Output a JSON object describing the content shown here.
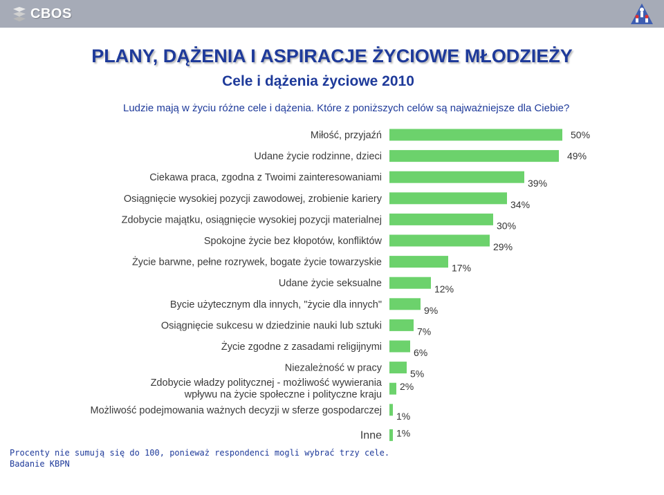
{
  "header": {
    "logo_text": "CBOS",
    "logo_icon": "cbos-logo-icon",
    "emblem_icon": "people-emblem-icon",
    "bar_color": "#a6abb7"
  },
  "title": "PLANY, DĄŻENIA I ASPIRACJE ŻYCIOWE MŁODZIEŻY",
  "subtitle": "Cele i dążenia życiowe 2010",
  "question": "Ludzie mają w życiu różne cele i dążenia. Które z poniższych celów są najważniejsze dla Ciebie?",
  "chart_data": {
    "type": "bar",
    "orientation": "horizontal",
    "bar_color": "#6cd26c",
    "value_suffix": "%",
    "grid": false,
    "categories": [
      "Miłość, przyjaźń",
      "Udane życie rodzinne, dzieci",
      "Ciekawa praca, zgodna z Twoimi zainteresowaniami",
      "Osiągnięcie wysokiej pozycji zawodowej, zrobienie kariery",
      "Zdobycie majątku, osiągnięcie wysokiej pozycji materialnej",
      "Spokojne życie bez kłopotów, konfliktów",
      "Życie barwne, pełne rozrywek, bogate życie towarzyskie",
      "Udane życie seksualne",
      "Bycie użytecznym dla innych, \"życie dla innych\"",
      "Osiągnięcie sukcesu w dziedzinie nauki lub sztuki",
      "Życie zgodne z zasadami religijnymi",
      "Niezależność w pracy",
      "Zdobycie władzy politycznej - możliwość wywierania\nwpływu na życie społeczne i polityczne kraju",
      "Możliwość podejmowania ważnych decyzji w sferze gospodarczej",
      "Inne"
    ],
    "values": [
      50,
      49,
      39,
      34,
      30,
      29,
      17,
      12,
      9,
      7,
      6,
      5,
      2,
      1,
      1
    ],
    "value_labels": [
      "50%",
      "49%",
      "39%",
      "34%",
      "30%",
      "29%",
      "17%",
      "12%",
      "9%",
      "7%",
      "6%",
      "5%",
      "2%",
      "1%",
      "1%"
    ]
  },
  "footnote": {
    "line1": "Procenty nie sumują się do 100, ponieważ respondenci mogli wybrać trzy cele.",
    "line2": "Badanie KBPN"
  }
}
